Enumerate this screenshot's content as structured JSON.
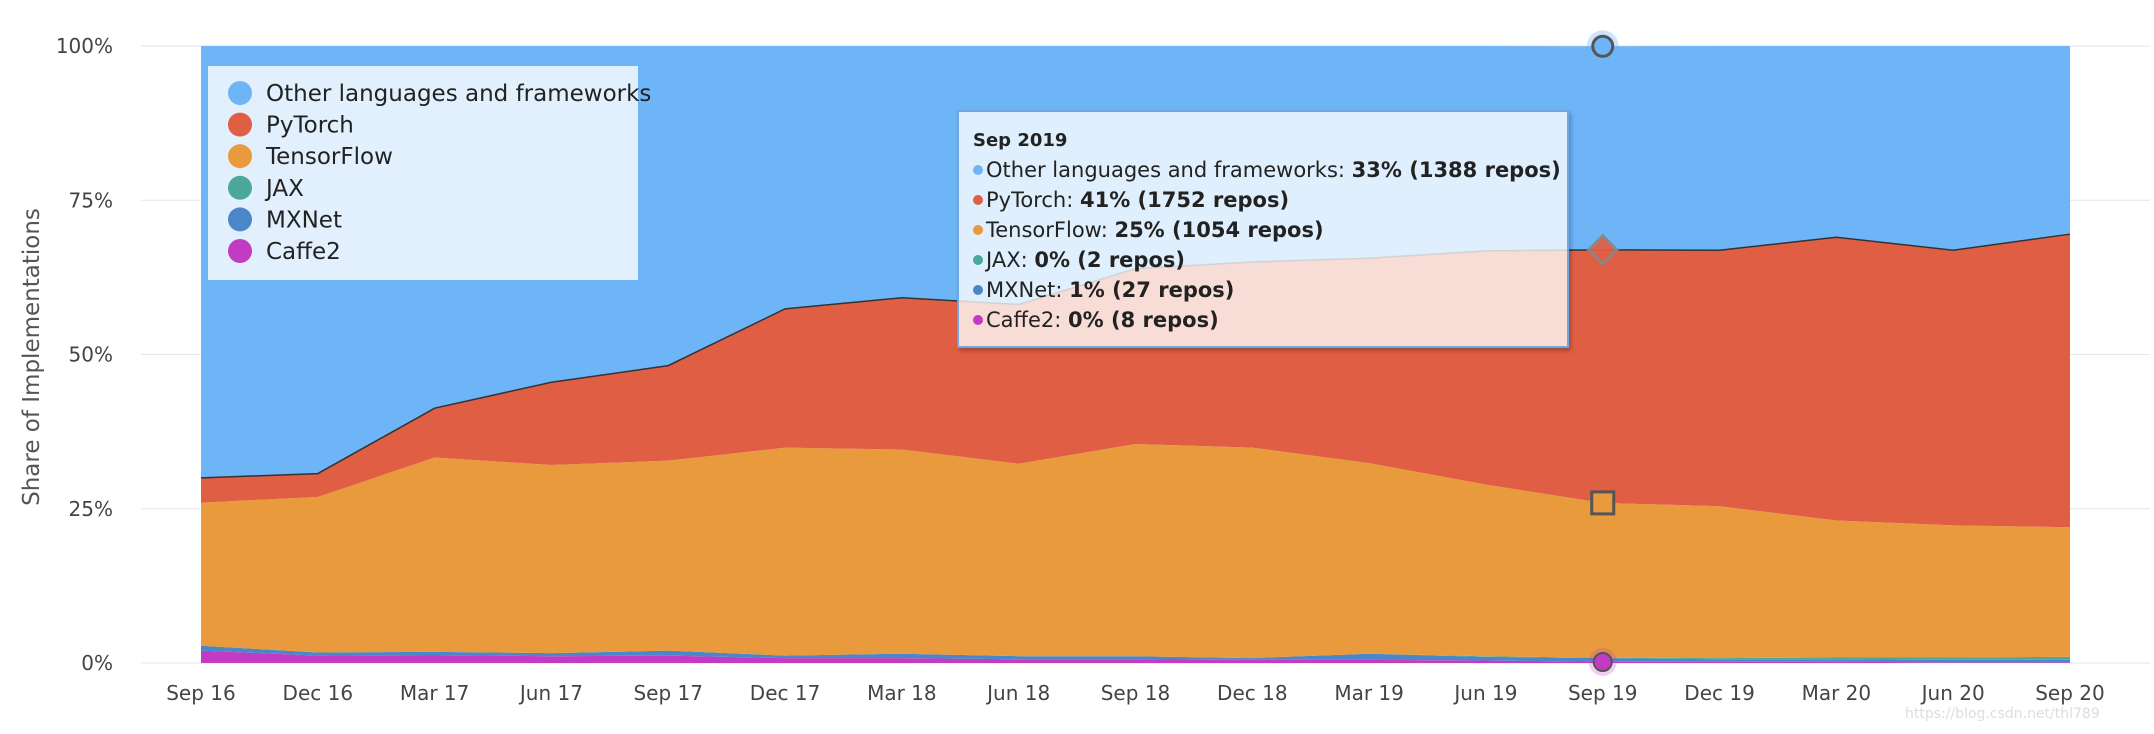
{
  "chart_data": {
    "type": "area",
    "stacked": true,
    "normalized": true,
    "x": [
      "Sep 16",
      "Dec 16",
      "Mar 17",
      "Jun 17",
      "Sep 17",
      "Dec 17",
      "Mar 18",
      "Jun 18",
      "Sep 18",
      "Dec 18",
      "Mar 19",
      "Jun 19",
      "Sep 19",
      "Dec 19",
      "Mar 20",
      "Jun 20",
      "Sep 20"
    ],
    "ylabel": "Share of Implementations",
    "yticks": [
      "0%",
      "25%",
      "50%",
      "75%",
      "100%"
    ],
    "ylim": [
      0,
      100
    ],
    "grid": true,
    "legend_position": "top-left",
    "series": [
      {
        "name": "Caffe2",
        "color": "#c23bc2",
        "values": [
          2,
          1.2,
          1.3,
          1.1,
          1.2,
          0.8,
          0.8,
          0.6,
          0.6,
          0.5,
          0.5,
          0.4,
          0.2,
          0.2,
          0.2,
          0.1,
          0.1
        ]
      },
      {
        "name": "MXNet",
        "color": "#4a86c8",
        "values": [
          0.8,
          0.5,
          0.5,
          0.5,
          0.8,
          0.4,
          0.7,
          0.5,
          0.5,
          0.3,
          1.0,
          0.6,
          0.6,
          0.4,
          0.4,
          0.4,
          0.4
        ]
      },
      {
        "name": "JAX",
        "color": "#4aa89a",
        "values": [
          0,
          0,
          0,
          0,
          0,
          0,
          0,
          0,
          0,
          0,
          0,
          0.1,
          0.05,
          0.2,
          0.3,
          0.4,
          0.5
        ]
      },
      {
        "name": "TensorFlow",
        "color": "#e89a3c",
        "values": [
          23.2,
          25.2,
          31.5,
          30.5,
          30.8,
          33.7,
          33.1,
          31.2,
          34.4,
          34.1,
          30.9,
          27.8,
          25.1,
          24.6,
          22.2,
          21.4,
          21.0
        ]
      },
      {
        "name": "PyTorch",
        "color": "#e05f44",
        "values": [
          4,
          3.8,
          8,
          13.4,
          15.4,
          22.5,
          24.6,
          25.8,
          28.4,
          30.1,
          33.2,
          37.9,
          41,
          41.5,
          45.9,
          44.6,
          47.5
        ]
      },
      {
        "name": "Other languages and frameworks",
        "color": "#6eb5f7",
        "values": [
          70,
          69.3,
          58.7,
          54.5,
          51.8,
          42.6,
          40.8,
          41.9,
          36.1,
          35,
          34.4,
          33.2,
          33,
          33.1,
          31,
          33.1,
          30.5
        ]
      }
    ],
    "highlight": {
      "x": "Sep 19",
      "title": "Sep 2019",
      "rows": [
        {
          "name": "Other languages and frameworks",
          "value": "33% (1388 repos)"
        },
        {
          "name": "PyTorch",
          "value": "41% (1752 repos)"
        },
        {
          "name": "TensorFlow",
          "value": "25% (1054 repos)"
        },
        {
          "name": "JAX",
          "value": "0% (2 repos)"
        },
        {
          "name": "MXNet",
          "value": "1% (27 repos)"
        },
        {
          "name": "Caffe2",
          "value": "0% (8 repos)"
        }
      ]
    }
  },
  "watermark": "https://blog.csdn.net/thl789"
}
